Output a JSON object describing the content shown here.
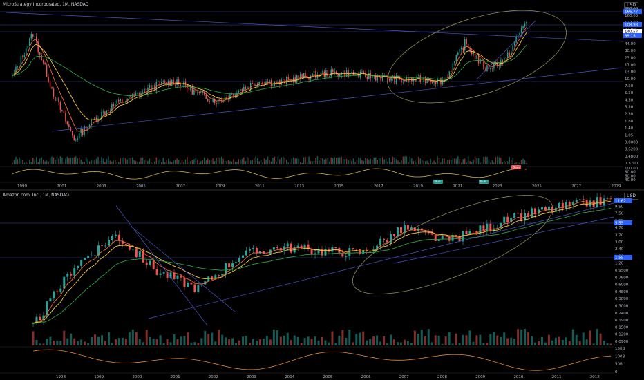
{
  "charts": [
    {
      "title": "MicroStrategy Incorporated, 1M, NASDAQ",
      "currency": "USD",
      "price_labels": [
        "260.00",
        "160.00",
        "122.00",
        "87.00",
        "62.00",
        "44.00",
        "30.00",
        "23.00",
        "17.00",
        "13.00",
        "10.00",
        "7.50",
        "5.50",
        "4.30",
        "3.30",
        "2.30",
        "1.80",
        "1.40",
        "1.05",
        "0.8000",
        "0.6200",
        "0.4800",
        "0.3700"
      ],
      "highlight_tags": [
        "166.77",
        "108.93",
        "140.57",
        "99.15"
      ],
      "x_ticks": [
        "1999",
        "2001",
        "2003",
        "2005",
        "2007",
        "2009",
        "2011",
        "2013",
        "2015",
        "2017",
        "2019",
        "2021",
        "2023",
        "2025",
        "2027",
        "2029"
      ],
      "osc_labels": [
        "100.00",
        "80.00",
        "60.00",
        "40.00"
      ],
      "badges": [
        "Bull",
        "Bull",
        "Bear"
      ],
      "colors": {
        "up": "#26a69a",
        "down": "#ef5350",
        "ema_fast": "#ef6c3a",
        "ema_slow": "#f5c542",
        "trend": "#4a56c8",
        "ellipse": "#8a8a5a",
        "osc": "#d4b54a"
      }
    },
    {
      "title": "Amazon.com, Inc., 1M, NASDAQ",
      "currency": "USD",
      "price_labels": [
        "11.62",
        "9.50",
        "7.50",
        "5.90",
        "4.70",
        "3.70",
        "3.00",
        "2.40",
        "1.80",
        "1.20",
        "0.9500",
        "0.7600",
        "0.6000",
        "0.4800",
        "0.3800",
        "0.3000",
        "0.2400",
        "0.1900",
        "0.1500",
        "0.1200",
        "0.0900"
      ],
      "highlight_tags": [
        "11.62",
        "5.55",
        "1.55"
      ],
      "x_ticks": [
        "1998",
        "1999",
        "2000",
        "2001",
        "2002",
        "2003",
        "2004",
        "2005",
        "2006",
        "2007",
        "2008",
        "2009",
        "2010",
        "2011",
        "2012"
      ],
      "osc_labels": [
        "150B",
        "100B",
        "50B",
        "0"
      ],
      "colors": {
        "up": "#26a69a",
        "down": "#ef5350",
        "ema_fast": "#ef6c3a",
        "ema_slow": "#f5c542",
        "trend": "#4a56c8",
        "ellipse": "#8a8a5a",
        "osc": "#e0863a"
      }
    }
  ],
  "chart_data": [
    {
      "type": "candlestick",
      "title": "MicroStrategy Incorporated, 1M, NASDAQ",
      "x": [
        "1999",
        "2000",
        "2001",
        "2002",
        "2003",
        "2004",
        "2005",
        "2006",
        "2007",
        "2008",
        "2009",
        "2010",
        "2011",
        "2012",
        "2013",
        "2014",
        "2015",
        "2016",
        "2017",
        "2018",
        "2019",
        "2020",
        "2021",
        "2022",
        "2023",
        "2024"
      ],
      "close_approx": [
        14,
        90,
        7,
        1.0,
        2.4,
        4.5,
        6.5,
        10,
        12,
        7,
        5,
        8,
        12,
        11,
        14,
        16,
        17,
        15,
        14,
        12,
        13,
        12,
        60,
        20,
        30,
        160
      ],
      "scale": "log",
      "ylim": [
        0.37,
        260
      ]
    },
    {
      "type": "candlestick",
      "title": "Amazon.com, Inc., 1M, NASDAQ",
      "x": [
        "1998",
        "1999",
        "2000",
        "2001",
        "2002",
        "2003",
        "2004",
        "2005",
        "2006",
        "2007",
        "2008",
        "2009",
        "2010",
        "2011",
        "2012"
      ],
      "close_approx": [
        0.15,
        1.2,
        3.5,
        1.0,
        0.55,
        1.7,
        2.3,
        2.0,
        1.9,
        4.4,
        2.8,
        4.5,
        7.3,
        9.5,
        11.6
      ],
      "scale": "log",
      "ylim": [
        0.09,
        12
      ]
    }
  ]
}
